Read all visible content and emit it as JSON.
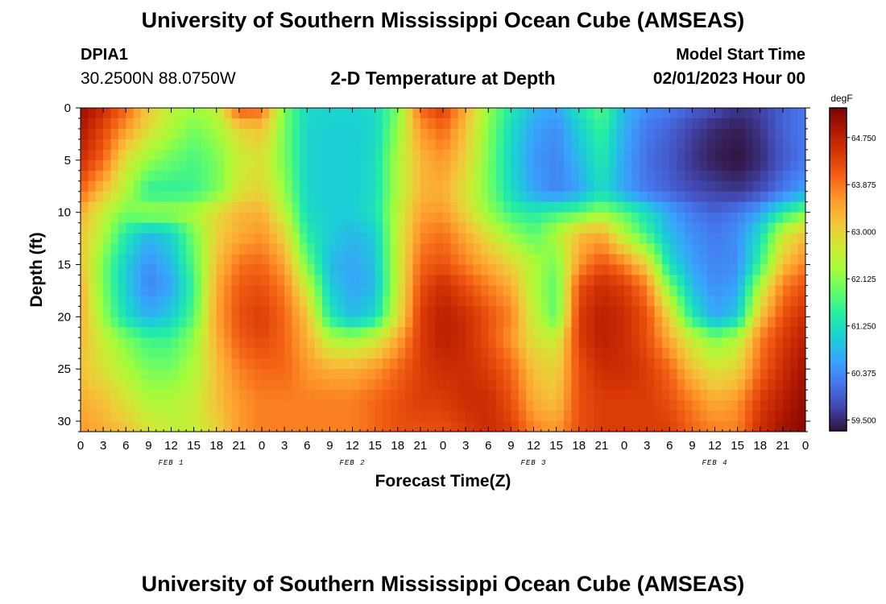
{
  "header": {
    "title": "University of Southern Mississippi Ocean Cube (AMSEAS)",
    "station_id": "DPIA1",
    "coordinates": "30.2500N  88.0750W",
    "subtitle": "2-D Temperature at Depth",
    "model_start_label": "Model Start Time",
    "model_start_value": "02/01/2023 Hour 00"
  },
  "footer": {
    "title": "University of Southern Mississippi Ocean Cube (AMSEAS)"
  },
  "chart_data": {
    "type": "heatmap",
    "title": "2-D Temperature at Depth",
    "xlabel": "Forecast Time(Z)",
    "ylabel": "Depth (ft)",
    "x_unit": "hours since 02/01/2023 00Z",
    "xlim": [
      0,
      96
    ],
    "ylim": [
      31,
      0
    ],
    "x_ticks": [
      0,
      3,
      6,
      9,
      12,
      15,
      18,
      21,
      24,
      27,
      30,
      33,
      36,
      39,
      42,
      45,
      48,
      51,
      54,
      57,
      60,
      63,
      66,
      69,
      72,
      75,
      78,
      81,
      84,
      87,
      90,
      93,
      96
    ],
    "x_tick_labels": [
      "0",
      "3",
      "6",
      "9",
      "12",
      "15",
      "18",
      "21",
      "0",
      "3",
      "6",
      "9",
      "12",
      "15",
      "18",
      "21",
      "0",
      "3",
      "6",
      "9",
      "12",
      "15",
      "18",
      "21",
      "0",
      "3",
      "6",
      "9",
      "12",
      "15",
      "18",
      "21",
      "0"
    ],
    "y_ticks": [
      0,
      5,
      10,
      15,
      20,
      25,
      30
    ],
    "y_tick_labels": [
      "0",
      "5",
      "10",
      "15",
      "20",
      "25",
      "30"
    ],
    "date_labels": [
      {
        "hour": 12,
        "label": "FEB 1"
      },
      {
        "hour": 36,
        "label": "FEB 2"
      },
      {
        "hour": 60,
        "label": "FEB 3"
      },
      {
        "hour": 84,
        "label": "FEB 4"
      }
    ],
    "colorbar": {
      "unit": "degF",
      "min": 59.3,
      "max": 65.3,
      "tick_values": [
        64.75,
        63.875,
        63.0,
        62.125,
        61.25,
        60.375,
        59.5
      ],
      "tick_labels": [
        "64.750",
        "63.875",
        "63.000",
        "62.125",
        "61.250",
        "60.375",
        "59.500"
      ],
      "colormap": [
        "#30123b",
        "#4145ab",
        "#4675ed",
        "#39a2fc",
        "#1bcfd4",
        "#24eca6",
        "#61fc6c",
        "#a4fc3b",
        "#d1e834",
        "#f3c63a",
        "#fe9b2d",
        "#f36315",
        "#d93806",
        "#b11901",
        "#7a0402"
      ]
    },
    "depths_ft": [
      0,
      2,
      5,
      8,
      10,
      12,
      15,
      17,
      20,
      22,
      25,
      28,
      31
    ],
    "hours": [
      0,
      3,
      6,
      9,
      12,
      15,
      18,
      21,
      24,
      27,
      30,
      33,
      36,
      39,
      42,
      45,
      48,
      51,
      54,
      57,
      60,
      63,
      66,
      69,
      72,
      75,
      78,
      81,
      84,
      87,
      90,
      93,
      96
    ],
    "temperature_degF": [
      [
        65.1,
        64.6,
        64.0,
        63.1,
        62.5,
        62.3,
        62.5,
        64.2,
        64.0,
        62.0,
        61.2,
        61.1,
        61.1,
        61.2,
        62.0,
        64.0,
        64.4,
        63.4,
        62.2,
        61.4,
        60.8,
        60.6,
        61.3,
        61.8,
        60.8,
        60.4,
        60.2,
        60.0,
        59.8,
        59.6,
        59.7,
        60.0,
        60.2
      ],
      [
        64.9,
        64.3,
        63.6,
        62.9,
        62.4,
        62.0,
        62.3,
        63.0,
        63.2,
        62.0,
        61.1,
        61.0,
        61.0,
        61.1,
        62.2,
        63.6,
        64.0,
        63.2,
        62.1,
        61.2,
        60.6,
        60.4,
        61.0,
        61.6,
        60.7,
        60.2,
        60.0,
        59.7,
        59.5,
        59.4,
        59.6,
        60.0,
        60.2
      ],
      [
        64.6,
        64.0,
        62.8,
        62.2,
        61.9,
        61.7,
        62.0,
        62.6,
        62.8,
        62.0,
        61.1,
        61.0,
        61.0,
        61.2,
        62.4,
        63.3,
        63.6,
        63.0,
        62.0,
        61.1,
        60.5,
        60.3,
        60.8,
        61.4,
        60.6,
        60.1,
        59.9,
        59.6,
        59.4,
        59.3,
        59.5,
        59.9,
        60.2
      ],
      [
        64.0,
        63.2,
        62.4,
        61.5,
        61.5,
        61.6,
        62.0,
        62.8,
        63.0,
        62.2,
        61.1,
        61.0,
        61.0,
        61.2,
        62.4,
        63.3,
        63.4,
        62.8,
        62.0,
        61.2,
        60.6,
        60.3,
        60.6,
        61.2,
        60.6,
        60.2,
        60.0,
        59.8,
        59.7,
        59.6,
        59.8,
        60.2,
        60.6
      ],
      [
        63.4,
        62.6,
        62.0,
        62.3,
        62.3,
        62.4,
        62.9,
        63.3,
        63.4,
        62.5,
        61.2,
        61.0,
        61.0,
        61.3,
        62.5,
        63.5,
        63.6,
        63.0,
        62.2,
        61.6,
        61.4,
        61.6,
        61.8,
        62.2,
        61.8,
        61.2,
        60.6,
        60.2,
        60.0,
        60.2,
        60.6,
        61.4,
        62.0
      ],
      [
        63.2,
        62.4,
        61.4,
        60.8,
        61.1,
        62.0,
        63.0,
        63.4,
        63.6,
        63.0,
        61.4,
        61.0,
        60.8,
        61.0,
        62.6,
        63.7,
        63.9,
        63.4,
        62.8,
        62.2,
        61.8,
        62.4,
        63.2,
        63.4,
        62.4,
        61.6,
        60.8,
        60.4,
        60.2,
        60.4,
        61.2,
        62.6,
        63.2
      ],
      [
        63.2,
        62.0,
        61.0,
        60.4,
        60.8,
        61.8,
        63.2,
        63.9,
        64.0,
        63.5,
        62.0,
        60.8,
        60.6,
        60.9,
        62.6,
        64.0,
        64.2,
        63.8,
        63.4,
        63.0,
        62.4,
        62.0,
        63.6,
        64.2,
        63.8,
        63.0,
        61.2,
        60.6,
        60.3,
        60.4,
        61.6,
        63.2,
        63.8
      ],
      [
        63.4,
        62.0,
        61.0,
        60.3,
        60.6,
        61.6,
        63.4,
        64.1,
        64.2,
        63.8,
        62.6,
        61.0,
        60.6,
        60.8,
        62.6,
        64.2,
        64.6,
        64.2,
        63.8,
        63.4,
        62.4,
        61.8,
        64.2,
        64.6,
        64.4,
        63.8,
        62.0,
        60.8,
        60.4,
        60.6,
        62.4,
        63.8,
        64.2
      ],
      [
        63.4,
        62.2,
        61.2,
        60.7,
        61.0,
        61.8,
        63.5,
        64.2,
        64.4,
        64.0,
        63.2,
        61.4,
        60.8,
        61.2,
        62.8,
        64.4,
        64.8,
        64.6,
        64.2,
        63.8,
        62.6,
        61.8,
        64.4,
        64.8,
        64.6,
        64.2,
        63.0,
        61.4,
        60.6,
        61.0,
        63.2,
        64.2,
        64.6
      ],
      [
        63.3,
        62.6,
        62.0,
        61.6,
        61.6,
        62.2,
        63.4,
        64.1,
        64.3,
        64.0,
        63.4,
        62.4,
        62.2,
        62.6,
        63.4,
        64.4,
        64.8,
        64.6,
        64.2,
        63.6,
        62.8,
        62.6,
        64.4,
        64.8,
        64.6,
        64.2,
        63.4,
        62.6,
        62.0,
        62.4,
        63.8,
        64.4,
        64.8
      ],
      [
        63.2,
        62.8,
        62.4,
        62.0,
        62.0,
        62.4,
        63.2,
        63.8,
        64.0,
        64.0,
        63.6,
        63.4,
        63.4,
        63.6,
        64.0,
        64.4,
        64.6,
        64.6,
        64.4,
        64.0,
        63.2,
        63.0,
        64.2,
        64.6,
        64.6,
        64.4,
        64.0,
        63.2,
        62.8,
        63.0,
        64.0,
        64.6,
        65.0
      ],
      [
        63.4,
        63.2,
        62.8,
        62.4,
        62.4,
        62.6,
        63.2,
        63.6,
        63.8,
        63.8,
        63.8,
        63.8,
        63.8,
        64.0,
        64.2,
        64.4,
        64.4,
        64.6,
        64.6,
        64.2,
        63.4,
        63.2,
        64.2,
        64.4,
        64.4,
        64.4,
        64.2,
        63.8,
        63.4,
        63.6,
        64.4,
        64.8,
        65.1
      ],
      [
        63.6,
        63.4,
        63.2,
        62.8,
        62.6,
        62.6,
        63.0,
        63.6,
        63.8,
        63.8,
        63.8,
        63.8,
        63.8,
        64.0,
        64.2,
        64.2,
        64.2,
        64.4,
        64.6,
        64.4,
        63.8,
        63.6,
        64.2,
        64.4,
        64.4,
        64.4,
        64.4,
        64.0,
        63.8,
        63.8,
        64.6,
        65.0,
        65.2
      ]
    ]
  }
}
